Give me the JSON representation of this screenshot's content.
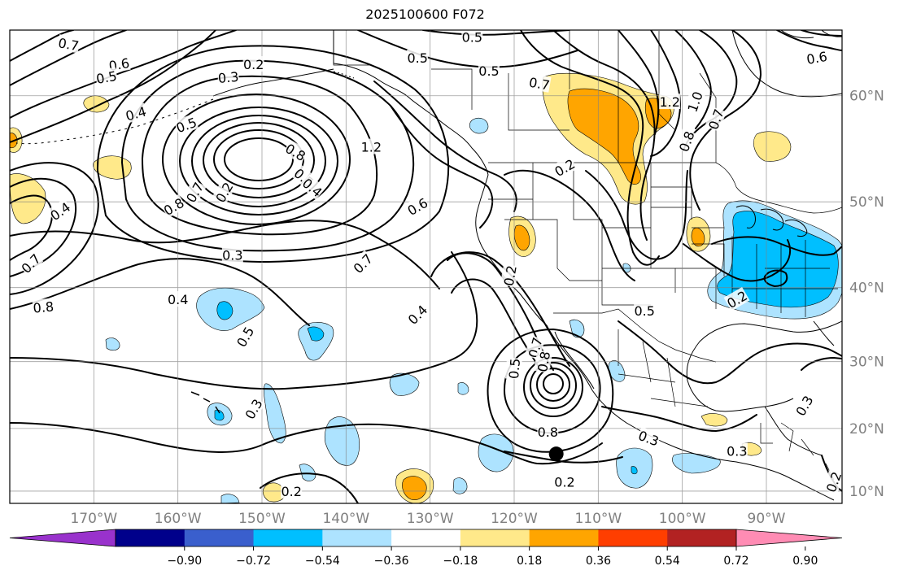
{
  "title": "2025100600 F072",
  "map": {
    "projection": "Mercator",
    "lon_range": [
      -180,
      -81
    ],
    "lat_range": [
      8,
      65
    ],
    "gridlines": true,
    "grid_lats": [
      10,
      20,
      30,
      40,
      50,
      60
    ],
    "grid_lons": [
      -170,
      -160,
      -150,
      -140,
      -130,
      -120,
      -110,
      -100,
      -90
    ],
    "lat_labels": [
      "10°N",
      "20°N",
      "30°N",
      "40°N",
      "50°N",
      "60°N"
    ],
    "lon_labels": [
      "170°W",
      "160°W",
      "150°W",
      "140°W",
      "130°W",
      "120°W",
      "110°W",
      "100°W",
      "90°W"
    ],
    "marker": {
      "type": "black-dot",
      "lon": -115,
      "lat": 16
    }
  },
  "colorbar": {
    "orientation": "horizontal",
    "extend": "both",
    "ticks": [
      "−0.90",
      "−0.72",
      "−0.54",
      "−0.36",
      "−0.18",
      "0.18",
      "0.36",
      "0.54",
      "0.72",
      "0.90"
    ],
    "colors": [
      "#9932cc",
      "#00008b",
      "#3a5fcd",
      "#00bfff",
      "#ade3ff",
      "#ffffff",
      "#ffe98a",
      "#ffa500",
      "#ff3e00",
      "#b22222",
      "#ff8cb4"
    ]
  },
  "contour_labels": [
    {
      "text": "0.7",
      "lon": -173,
      "lat": 64,
      "rot": -10
    },
    {
      "text": "0.6",
      "lon": -167,
      "lat": 62.5,
      "rot": 10
    },
    {
      "text": "0.5",
      "lon": -168.5,
      "lat": 61.5,
      "rot": 10
    },
    {
      "text": "0.4",
      "lon": -165,
      "lat": 58.5,
      "rot": 15
    },
    {
      "text": "0.3",
      "lon": -154,
      "lat": 61.5,
      "rot": 5
    },
    {
      "text": "0.2",
      "lon": -151,
      "lat": 62.5,
      "rot": 0
    },
    {
      "text": "0.5",
      "lon": -159,
      "lat": 57.5,
      "rot": 20
    },
    {
      "text": "0.4",
      "lon": -174,
      "lat": 49,
      "rot": 35
    },
    {
      "text": "0.7",
      "lon": -177.5,
      "lat": 43,
      "rot": 45
    },
    {
      "text": "0.8",
      "lon": -176,
      "lat": 37.5,
      "rot": 5
    },
    {
      "text": "0.8",
      "lon": -160.5,
      "lat": 49.5,
      "rot": 30
    },
    {
      "text": "0.7",
      "lon": -158,
      "lat": 51,
      "rot": 60
    },
    {
      "text": "0.2",
      "lon": -154.5,
      "lat": 51,
      "rot": 60
    },
    {
      "text": "0.3",
      "lon": -153.5,
      "lat": 44,
      "rot": 0
    },
    {
      "text": "0.8",
      "lon": -146,
      "lat": 55,
      "rot": -30
    },
    {
      "text": "0.5",
      "lon": -145,
      "lat": 52.5,
      "rot": -40
    },
    {
      "text": "0.4",
      "lon": -144,
      "lat": 51.5,
      "rot": -40
    },
    {
      "text": "1.2",
      "lon": -137,
      "lat": 55.5,
      "rot": 0
    },
    {
      "text": "0.5",
      "lon": -131.5,
      "lat": 63,
      "rot": 0
    },
    {
      "text": "0.5",
      "lon": -125,
      "lat": 64.5,
      "rot": 0
    },
    {
      "text": "0.6",
      "lon": -131.5,
      "lat": 49.5,
      "rot": 30
    },
    {
      "text": "0.7",
      "lon": -138,
      "lat": 43,
      "rot": 45
    },
    {
      "text": "0.4",
      "lon": -160,
      "lat": 38.5,
      "rot": 0
    },
    {
      "text": "0.5",
      "lon": -152,
      "lat": 33.5,
      "rot": 60
    },
    {
      "text": "0.4",
      "lon": -131.5,
      "lat": 36.5,
      "rot": 45
    },
    {
      "text": "0.3",
      "lon": -151,
      "lat": 23,
      "rot": 60
    },
    {
      "text": "0.2",
      "lon": -146.5,
      "lat": 10,
      "rot": 0
    },
    {
      "text": "0.2",
      "lon": -120.5,
      "lat": 41.5,
      "rot": 80
    },
    {
      "text": "0.5",
      "lon": -123,
      "lat": 62,
      "rot": 0
    },
    {
      "text": "0.7",
      "lon": -117,
      "lat": 61,
      "rot": -10
    },
    {
      "text": "0.2",
      "lon": -114,
      "lat": 53.5,
      "rot": 30
    },
    {
      "text": "1.2",
      "lon": -101.5,
      "lat": 59.5,
      "rot": 0
    },
    {
      "text": "1.0",
      "lon": -98.5,
      "lat": 59.5,
      "rot": 70
    },
    {
      "text": "0.8",
      "lon": -99.5,
      "lat": 56,
      "rot": 70
    },
    {
      "text": "0.7",
      "lon": -96,
      "lat": 58,
      "rot": 70
    },
    {
      "text": "0.6",
      "lon": -84,
      "lat": 63,
      "rot": 10
    },
    {
      "text": "0.5",
      "lon": -104.5,
      "lat": 37,
      "rot": 0
    },
    {
      "text": "0.2",
      "lon": -93.5,
      "lat": 38.5,
      "rot": 30
    },
    {
      "text": "0.7",
      "lon": -117.5,
      "lat": 32,
      "rot": 75
    },
    {
      "text": "0.5",
      "lon": -120,
      "lat": 29,
      "rot": 85
    },
    {
      "text": "0.8",
      "lon": -116.5,
      "lat": 30,
      "rot": 80
    },
    {
      "text": "0.3",
      "lon": -104,
      "lat": 18.5,
      "rot": -20
    },
    {
      "text": "0.2",
      "lon": -114,
      "lat": 11.5,
      "rot": 0
    },
    {
      "text": "0.3",
      "lon": -93.5,
      "lat": 16.5,
      "rot": 0
    },
    {
      "text": "0.3",
      "lon": -85.5,
      "lat": 23.5,
      "rot": 60
    },
    {
      "text": "0.2",
      "lon": -82,
      "lat": 11.5,
      "rot": 70
    },
    {
      "text": "0.8",
      "lon": -116,
      "lat": 19.5,
      "rot": 0
    }
  ]
}
